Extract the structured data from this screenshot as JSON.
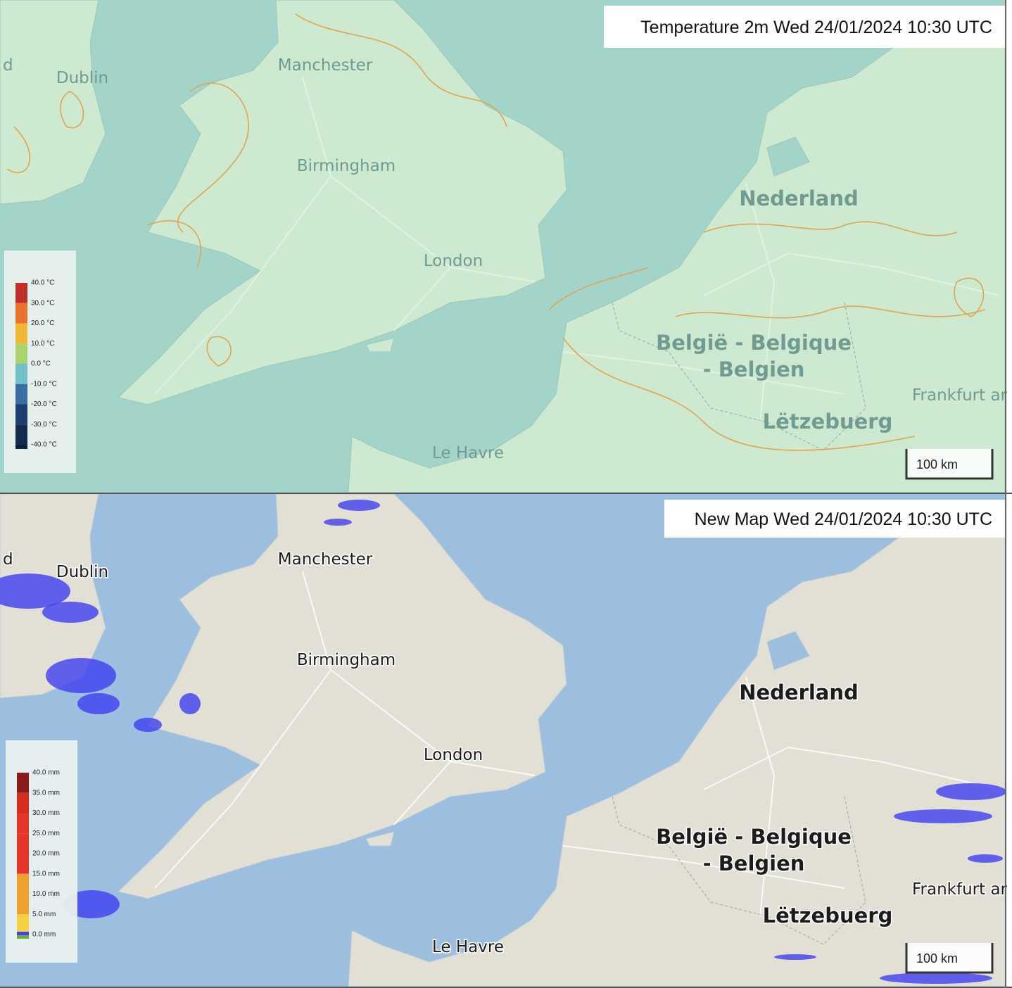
{
  "panels": [
    {
      "title": "Temperature 2m Wed  24/01/2024  10:30 UTC",
      "places": [
        "d",
        "Dublin",
        "Manchester",
        "Birmingham",
        "London",
        "Nederland",
        "België - Belgique",
        "- Belgien",
        "Frankfurt ar",
        "Lëtzebuerg",
        "Le Havre"
      ],
      "legend": [
        "40.0 °C",
        "30.0 °C",
        "20.0 °C",
        "10.0 °C",
        "0.0 °C",
        "-10.0 °C",
        "-20.0 °C",
        "-30.0 °C",
        "-40.0 °C"
      ],
      "scale": "100 km"
    },
    {
      "title": "New Map Wed  24/01/2024  10:30 UTC",
      "places": [
        "d",
        "Dublin",
        "Manchester",
        "Birmingham",
        "London",
        "Nederland",
        "België - Belgique",
        "- Belgien",
        "Frankfurt ar",
        "Lëtzebuerg",
        "Le Havre"
      ],
      "legend": [
        "40.0 mm",
        "35.0 mm",
        "30.0 mm",
        "25.0 mm",
        "20.0 mm",
        "15.0 mm",
        "10.0 mm",
        "5.0 mm",
        "0.0 mm"
      ],
      "scale": "100 km"
    }
  ]
}
